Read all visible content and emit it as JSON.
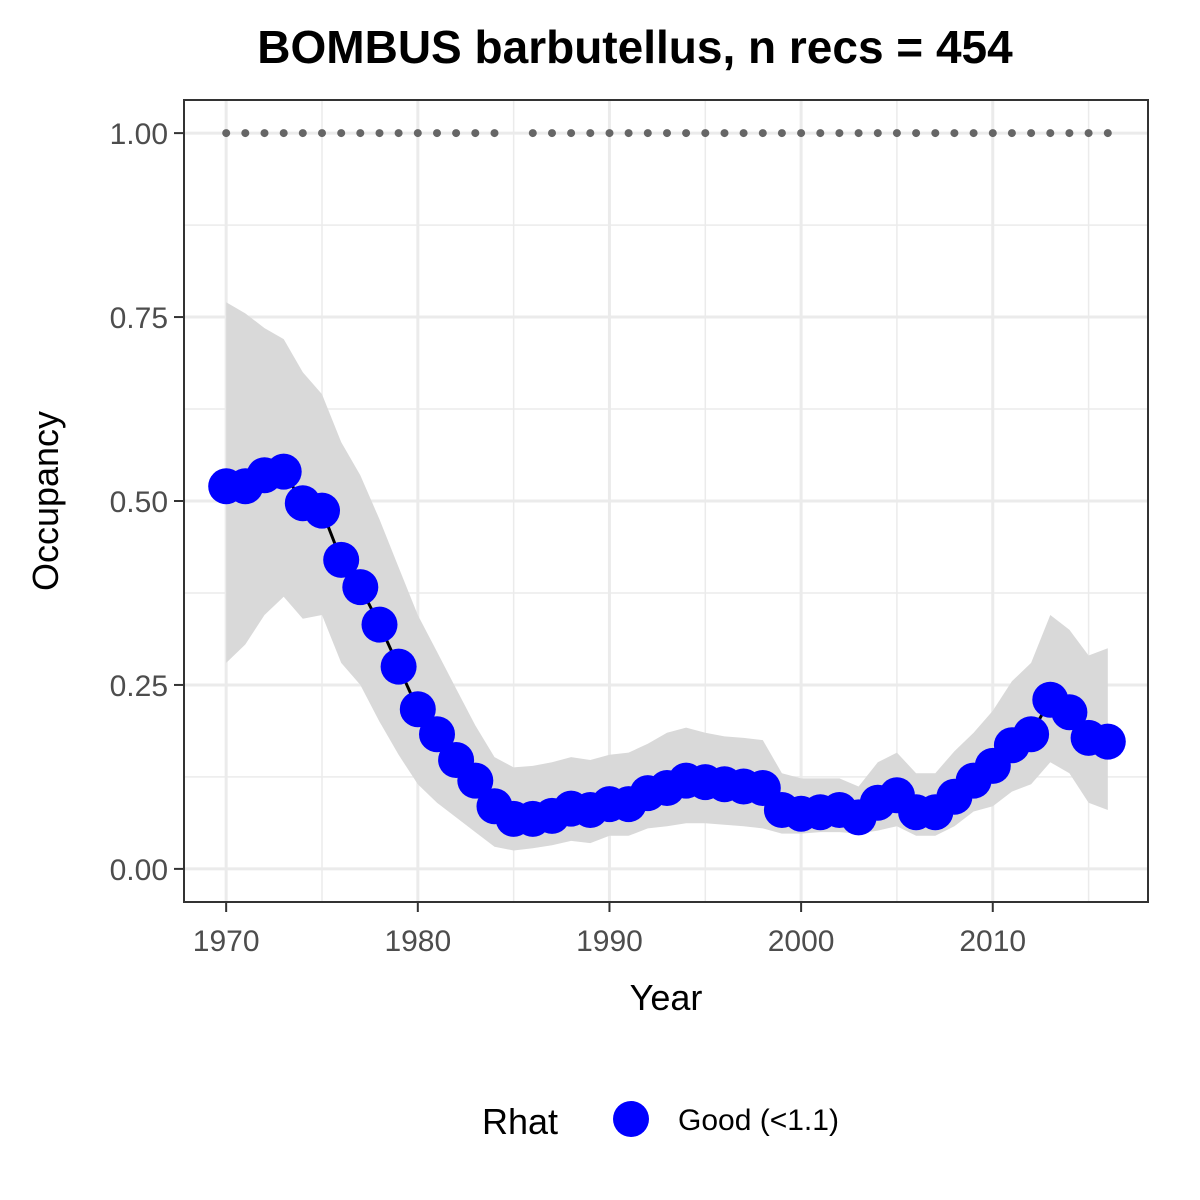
{
  "chart_data": {
    "type": "line",
    "title": "BOMBUS barbutellus, n recs = 454",
    "xlabel": "Year",
    "ylabel": "Occupancy",
    "xlim": [
      1967.8,
      2018.1
    ],
    "ylim": [
      -0.045,
      1.045
    ],
    "x_ticks": [
      1970,
      1980,
      1990,
      2000,
      2010
    ],
    "x_tick_labels": [
      "1970",
      "1980",
      "1990",
      "2000",
      "2010"
    ],
    "y_ticks": [
      0.0,
      0.25,
      0.5,
      0.75,
      1.0
    ],
    "y_tick_labels": [
      "0.00",
      "0.25",
      "0.50",
      "0.75",
      "1.00"
    ],
    "grid": true,
    "colors": {
      "point": "#0000ff",
      "line": "#000000",
      "ribbon": "#d9d9d9",
      "rug": "#666666",
      "grid": "#ebebeb",
      "panel_border": "#333333"
    },
    "legend": {
      "title": "Rhat",
      "position": "bottom",
      "entries": [
        {
          "label": "Good (<1.1)",
          "color": "#0000ff"
        }
      ]
    },
    "years": [
      1970,
      1971,
      1972,
      1973,
      1974,
      1975,
      1976,
      1977,
      1978,
      1979,
      1980,
      1981,
      1982,
      1983,
      1984,
      1985,
      1986,
      1987,
      1988,
      1989,
      1990,
      1991,
      1992,
      1993,
      1994,
      1995,
      1996,
      1997,
      1998,
      1999,
      2000,
      2001,
      2002,
      2003,
      2004,
      2005,
      2006,
      2007,
      2008,
      2009,
      2010,
      2011,
      2012,
      2013,
      2014,
      2015,
      2016
    ],
    "occupancy": [
      0.52,
      0.52,
      0.535,
      0.54,
      0.497,
      0.487,
      0.42,
      0.383,
      0.332,
      0.275,
      0.217,
      0.183,
      0.148,
      0.12,
      0.085,
      0.068,
      0.068,
      0.072,
      0.082,
      0.08,
      0.088,
      0.088,
      0.103,
      0.11,
      0.12,
      0.118,
      0.115,
      0.112,
      0.11,
      0.08,
      0.075,
      0.077,
      0.08,
      0.07,
      0.09,
      0.1,
      0.077,
      0.077,
      0.098,
      0.12,
      0.14,
      0.168,
      0.183,
      0.23,
      0.213,
      0.178,
      0.173
    ],
    "ci_lower": [
      0.28,
      0.305,
      0.345,
      0.37,
      0.34,
      0.345,
      0.28,
      0.25,
      0.2,
      0.155,
      0.115,
      0.09,
      0.07,
      0.05,
      0.03,
      0.025,
      0.028,
      0.032,
      0.038,
      0.035,
      0.045,
      0.045,
      0.055,
      0.058,
      0.062,
      0.062,
      0.06,
      0.058,
      0.055,
      0.048,
      0.048,
      0.05,
      0.05,
      0.048,
      0.052,
      0.058,
      0.045,
      0.045,
      0.058,
      0.078,
      0.085,
      0.105,
      0.115,
      0.145,
      0.13,
      0.09,
      0.08
    ],
    "ci_upper": [
      0.77,
      0.755,
      0.735,
      0.72,
      0.675,
      0.645,
      0.58,
      0.535,
      0.475,
      0.41,
      0.345,
      0.295,
      0.245,
      0.195,
      0.152,
      0.138,
      0.14,
      0.145,
      0.152,
      0.148,
      0.155,
      0.158,
      0.17,
      0.185,
      0.192,
      0.185,
      0.18,
      0.178,
      0.175,
      0.13,
      0.123,
      0.123,
      0.123,
      0.112,
      0.145,
      0.158,
      0.13,
      0.13,
      0.16,
      0.185,
      0.215,
      0.255,
      0.28,
      0.345,
      0.325,
      0.29,
      0.3
    ],
    "recording_years_y": 1.0,
    "recording_years": [
      1970,
      1971,
      1972,
      1973,
      1974,
      1975,
      1976,
      1977,
      1978,
      1979,
      1980,
      1981,
      1982,
      1983,
      1984,
      1986,
      1987,
      1988,
      1989,
      1990,
      1991,
      1992,
      1993,
      1994,
      1995,
      1996,
      1997,
      1998,
      1999,
      2000,
      2001,
      2002,
      2003,
      2004,
      2005,
      2006,
      2007,
      2008,
      2009,
      2010,
      2011,
      2012,
      2013,
      2014,
      2015,
      2016
    ]
  }
}
